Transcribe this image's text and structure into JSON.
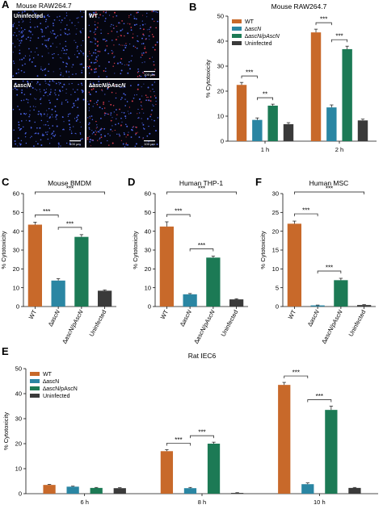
{
  "colors": {
    "WT": "#C8692A",
    "dascN": "#2A86A3",
    "comp": "#1C7A55",
    "uninf": "#3A3A3A",
    "cell": "#4a63e6"
  },
  "panel_letters": [
    "A",
    "B",
    "C",
    "D",
    "E",
    "F"
  ],
  "micrograph": {
    "title": "Mouse RAW264.7",
    "tiles": [
      {
        "label": "Uninfected",
        "scale": ""
      },
      {
        "label": "WT",
        "scale": "100 μm"
      },
      {
        "label": "∆ascN",
        "scale": "100 μm"
      },
      {
        "label": "∆ascN/pAscN",
        "scale": "100 μm"
      }
    ]
  },
  "chart_data": [
    {
      "id": "B",
      "type": "bar",
      "title": "Mouse RAW264.7",
      "ylabel": "% Cytotoxicity",
      "ylim": [
        0,
        50
      ],
      "yticks": [
        0,
        10,
        20,
        30,
        40,
        50
      ],
      "categories": [
        "1 h",
        "2 h"
      ],
      "legend": [
        "WT",
        "∆ascN",
        "∆ascN/pAscN",
        "Uninfected"
      ],
      "legend_position": "top-left",
      "series": [
        {
          "name": "WT",
          "color": "#C8692A",
          "values": [
            22.5,
            43.5
          ],
          "errors": [
            1.0,
            1.3
          ]
        },
        {
          "name": "∆ascN",
          "color": "#2A86A3",
          "values": [
            8.5,
            13.5
          ],
          "errors": [
            0.8,
            1.0
          ]
        },
        {
          "name": "∆ascN/pAscN",
          "color": "#1C7A55",
          "values": [
            14.2,
            36.8
          ],
          "errors": [
            0.6,
            1.2
          ]
        },
        {
          "name": "Uninfected",
          "color": "#3A3A3A",
          "values": [
            6.8,
            8.3
          ],
          "errors": [
            0.6,
            0.5
          ]
        }
      ],
      "brackets": [
        {
          "group": 0,
          "from": 0,
          "to": 1,
          "label": "***"
        },
        {
          "group": 0,
          "from": 1,
          "to": 2,
          "label": "**"
        },
        {
          "group": 1,
          "from": 0,
          "to": 1,
          "label": "***"
        },
        {
          "group": 1,
          "from": 1,
          "to": 2,
          "label": "***"
        }
      ]
    },
    {
      "id": "C",
      "type": "bar",
      "title": "Mouse BMDM",
      "ylabel": "% Cytotoxicity",
      "ylim": [
        0,
        60
      ],
      "yticks": [
        0,
        10,
        20,
        30,
        40,
        50,
        60
      ],
      "categories": [
        "WT",
        "∆ascN",
        "∆ascN/pAscN",
        "Uninfected"
      ],
      "values": [
        43.5,
        13.8,
        37.0,
        8.4
      ],
      "errors": [
        1.3,
        1.0,
        1.2,
        0.4
      ],
      "colors": [
        "#C8692A",
        "#2A86A3",
        "#1C7A55",
        "#3A3A3A"
      ],
      "brackets": [
        {
          "from": 0,
          "to": 1,
          "label": "***"
        },
        {
          "from": 1,
          "to": 2,
          "label": "***"
        },
        {
          "from": 0,
          "to": 3,
          "label": "***"
        }
      ]
    },
    {
      "id": "D",
      "type": "bar",
      "title": "Human THP-1",
      "ylabel": "% Cytotoxicity",
      "ylim": [
        0,
        60
      ],
      "yticks": [
        0,
        10,
        20,
        30,
        40,
        50,
        60
      ],
      "categories": [
        "WT",
        "∆ascN",
        "∆ascN/pAscN",
        "Uninfected"
      ],
      "values": [
        42.5,
        6.5,
        26.0,
        3.8
      ],
      "errors": [
        2.5,
        0.4,
        0.8,
        0.3
      ],
      "colors": [
        "#C8692A",
        "#2A86A3",
        "#1C7A55",
        "#3A3A3A"
      ],
      "brackets": [
        {
          "from": 0,
          "to": 1,
          "label": "***"
        },
        {
          "from": 1,
          "to": 2,
          "label": "***"
        },
        {
          "from": 0,
          "to": 3,
          "label": "***"
        }
      ]
    },
    {
      "id": "F",
      "type": "bar",
      "title": "Human MSC",
      "ylabel": "% Cytotoxicity",
      "ylim": [
        0,
        30
      ],
      "yticks": [
        0,
        5,
        10,
        15,
        20,
        25,
        30
      ],
      "categories": [
        "WT",
        "∆ascN",
        "∆ascN/pAscN",
        "Uninfected"
      ],
      "values": [
        22.0,
        0.3,
        7.0,
        0.4
      ],
      "errors": [
        0.7,
        0.1,
        0.5,
        0.1
      ],
      "colors": [
        "#C8692A",
        "#2A86A3",
        "#1C7A55",
        "#3A3A3A"
      ],
      "brackets": [
        {
          "from": 0,
          "to": 1,
          "label": "***"
        },
        {
          "from": 1,
          "to": 2,
          "label": "***"
        },
        {
          "from": 0,
          "to": 3,
          "label": "***"
        }
      ]
    },
    {
      "id": "E",
      "type": "bar",
      "title": "Rat IEC6",
      "ylabel": "% Cytotoxicity",
      "ylim": [
        0,
        50
      ],
      "yticks": [
        0,
        10,
        20,
        30,
        40,
        50
      ],
      "categories": [
        "6 h",
        "8 h",
        "10 h"
      ],
      "legend": [
        "WT",
        "∆ascN",
        "∆ascN/pAscN",
        "Uninfected"
      ],
      "legend_position": "top-left",
      "series": [
        {
          "name": "WT",
          "color": "#C8692A",
          "values": [
            3.5,
            17.0,
            43.5
          ],
          "errors": [
            0.2,
            0.6,
            1.0
          ]
        },
        {
          "name": "∆ascN",
          "color": "#2A86A3",
          "values": [
            2.8,
            2.2,
            3.8
          ],
          "errors": [
            0.2,
            0.3,
            0.5
          ]
        },
        {
          "name": "∆ascN/pAscN",
          "color": "#1C7A55",
          "values": [
            2.3,
            20.0,
            33.5
          ],
          "errors": [
            0.2,
            0.6,
            1.5
          ]
        },
        {
          "name": "Uninfected",
          "color": "#3A3A3A",
          "values": [
            2.2,
            0.3,
            2.3
          ],
          "errors": [
            0.2,
            0.1,
            0.2
          ]
        }
      ],
      "brackets": [
        {
          "group": 1,
          "from": 0,
          "to": 1,
          "label": "***"
        },
        {
          "group": 1,
          "from": 1,
          "to": 2,
          "label": "***"
        },
        {
          "group": 2,
          "from": 0,
          "to": 1,
          "label": "***"
        },
        {
          "group": 2,
          "from": 1,
          "to": 2,
          "label": "***"
        }
      ]
    }
  ]
}
